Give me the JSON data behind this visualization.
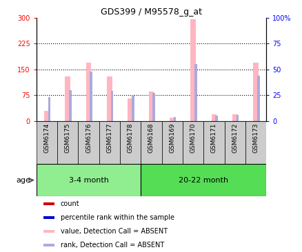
{
  "title": "GDS399 / M95578_g_at",
  "samples": [
    "GSM6174",
    "GSM6175",
    "GSM6176",
    "GSM6177",
    "GSM6178",
    "GSM6168",
    "GSM6169",
    "GSM6170",
    "GSM6171",
    "GSM6172",
    "GSM6173"
  ],
  "groups": [
    {
      "label": "3-4 month",
      "start": 0,
      "end": 5,
      "color": "#90EE90"
    },
    {
      "label": "20-22 month",
      "start": 5,
      "end": 11,
      "color": "#55DD55"
    }
  ],
  "absent_value": [
    30,
    130,
    170,
    130,
    65,
    85,
    10,
    295,
    20,
    20,
    170
  ],
  "absent_rank": [
    23,
    30,
    48,
    29,
    25,
    27,
    4,
    55,
    5,
    6,
    44
  ],
  "ylim_left": [
    0,
    300
  ],
  "ylim_right": [
    0,
    100
  ],
  "yticks_left": [
    0,
    75,
    150,
    225,
    300
  ],
  "yticks_right": [
    0,
    25,
    50,
    75,
    100
  ],
  "absent_bar_color": "#FFB6C1",
  "absent_rank_color": "#AAAADD",
  "grid_color": "black",
  "age_label": "age",
  "legend_items": [
    {
      "label": "count",
      "color": "#CC0000"
    },
    {
      "label": "percentile rank within the sample",
      "color": "#0000CC"
    },
    {
      "label": "value, Detection Call = ABSENT",
      "color": "#FFB6C1"
    },
    {
      "label": "rank, Detection Call = ABSENT",
      "color": "#AAAADD"
    }
  ]
}
